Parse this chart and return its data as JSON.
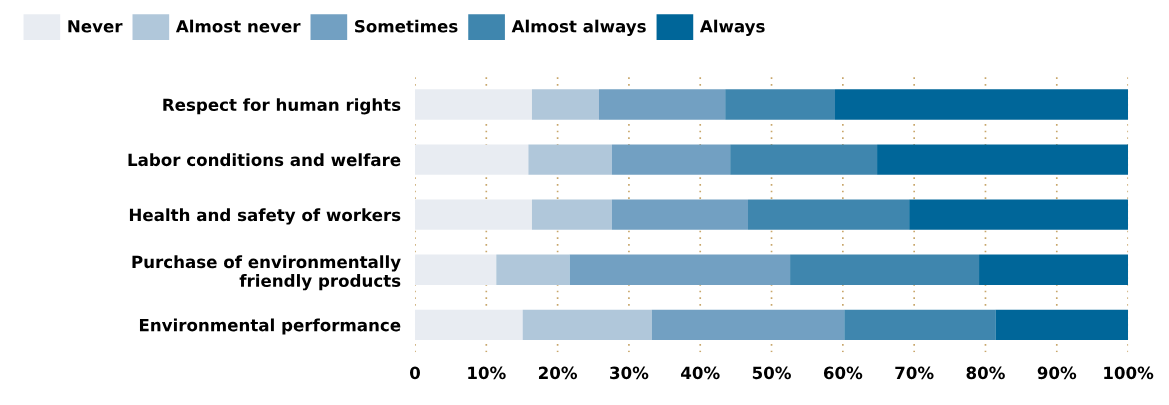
{
  "chart_data": {
    "type": "bar",
    "orientation": "horizontal",
    "stacked": true,
    "categories": [
      "Respect for human rights",
      "Labor conditions and welfare",
      "Health and safety of workers",
      "Purchase of environmentally\nfriendly products",
      "Environmental performance"
    ],
    "series": [
      {
        "name": "Never",
        "color": "#e8ecf2",
        "values": [
          16.4,
          15.9,
          16.4,
          11.4,
          15.1
        ]
      },
      {
        "name": "Almost never",
        "color": "#b0c7da",
        "values": [
          9.4,
          11.7,
          11.2,
          10.3,
          18.1
        ]
      },
      {
        "name": "Sometimes",
        "color": "#72a0c2",
        "values": [
          17.7,
          16.6,
          19.1,
          30.9,
          27.0
        ]
      },
      {
        "name": "Almost always",
        "color": "#3f86ae",
        "values": [
          15.4,
          20.6,
          22.6,
          26.5,
          21.2
        ]
      },
      {
        "name": "Always",
        "color": "#006699",
        "values": [
          41.1,
          35.2,
          30.7,
          20.9,
          18.6
        ]
      }
    ],
    "xlim": [
      0,
      100
    ],
    "xticks": [
      0,
      {
        "value": 10,
        "label": "10%"
      },
      {
        "value": 20,
        "label": "20%"
      },
      {
        "value": 30,
        "label": "30%"
      },
      {
        "value": 40,
        "label": "40%"
      },
      {
        "value": 50,
        "label": "50%"
      },
      {
        "value": 60,
        "label": "60%"
      },
      {
        "value": 70,
        "label": "70%"
      },
      {
        "value": 80,
        "label": "80%"
      },
      {
        "value": 90,
        "label": "90%"
      },
      {
        "value": 100,
        "label": "100%"
      }
    ],
    "grid": "x",
    "legend": "top left"
  }
}
